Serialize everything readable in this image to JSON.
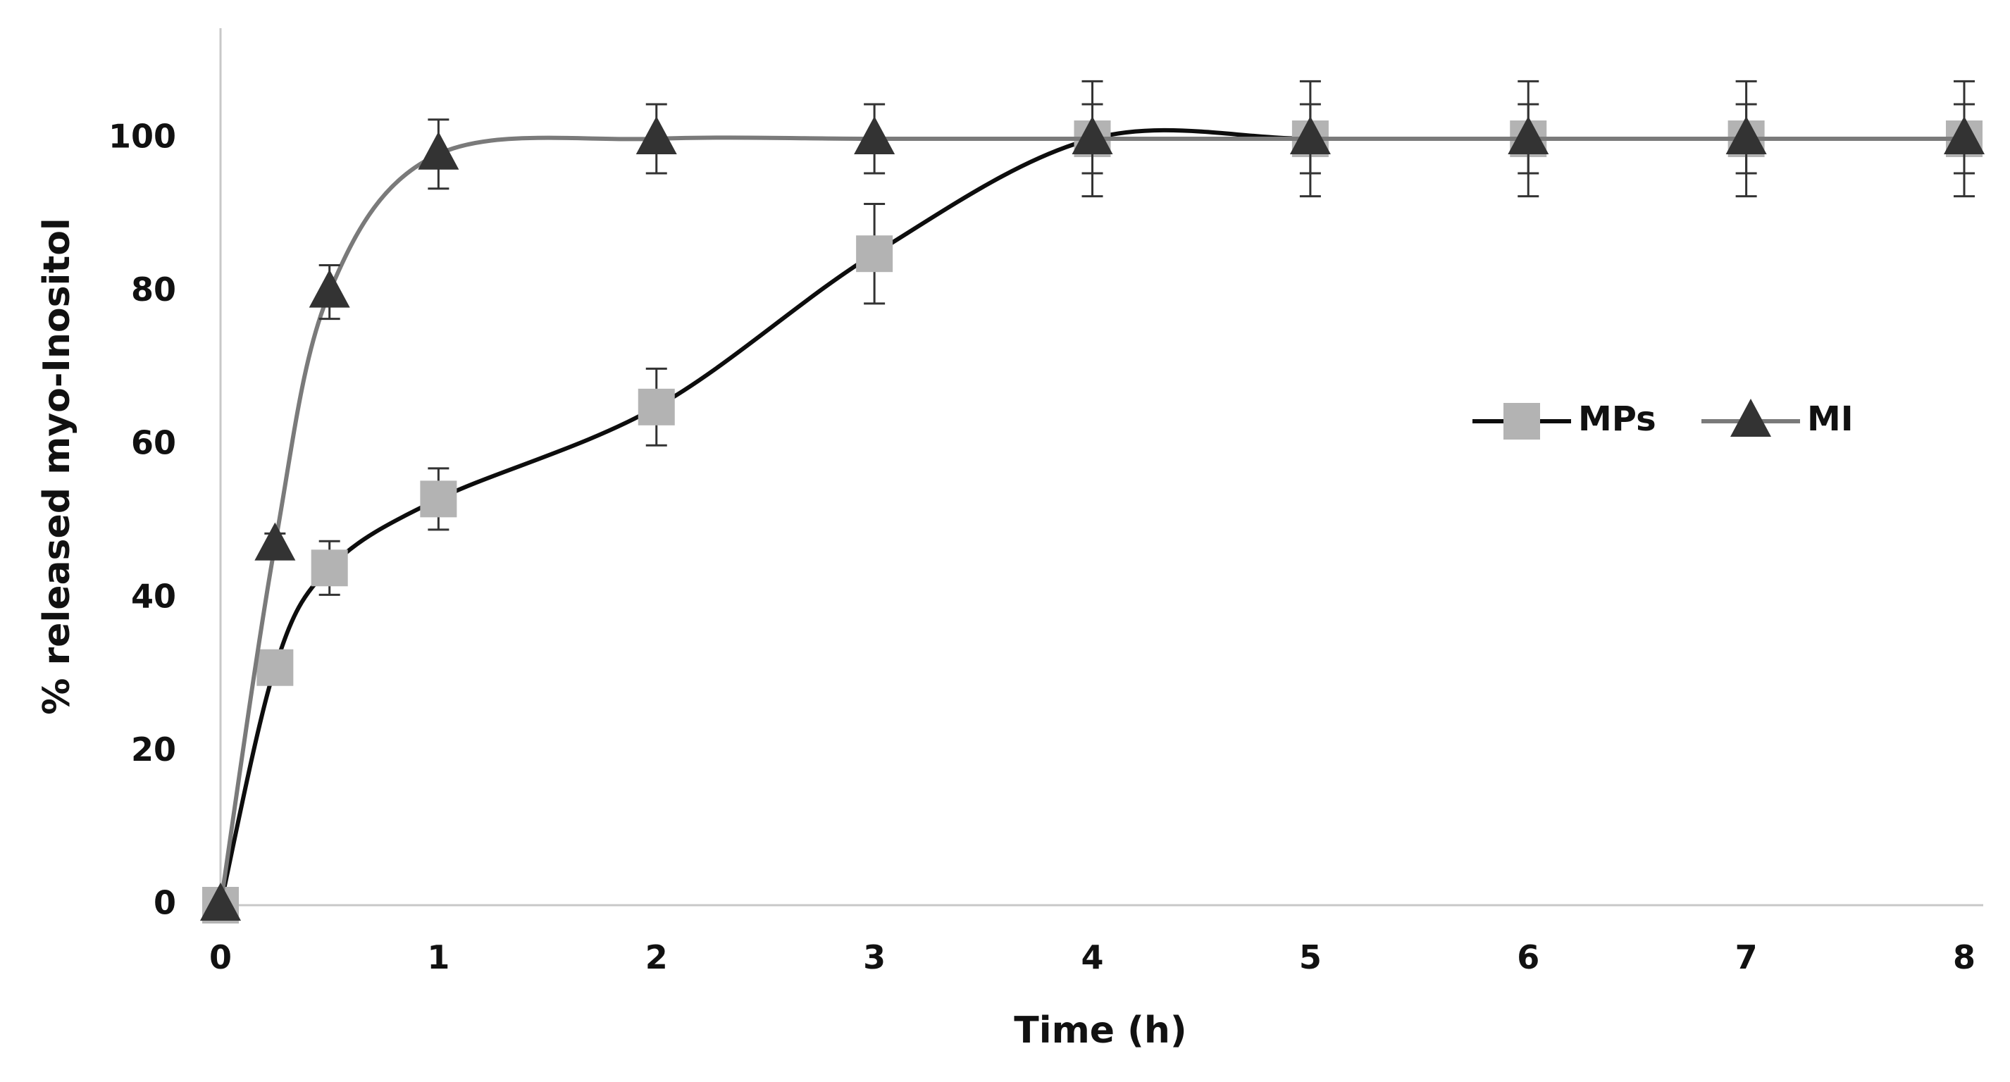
{
  "chart_data": {
    "type": "line",
    "title": "",
    "xlabel": "Time (h)",
    "ylabel": "% released myo-Inositol",
    "xlim": [
      0,
      8
    ],
    "ylim": [
      0,
      110
    ],
    "x_ticks": [
      "0",
      "1",
      "2",
      "3",
      "4",
      "5",
      "6",
      "7",
      "8"
    ],
    "y_ticks": [
      "0",
      "20",
      "40",
      "60",
      "80",
      "100"
    ],
    "grid": false,
    "legend_position": "right-middle",
    "series": [
      {
        "name": "MPs",
        "marker": "square",
        "line_color": "#0d0d0d",
        "marker_color": "#b3b3b3",
        "x": [
          0,
          0.25,
          0.5,
          1,
          2,
          3,
          4,
          5,
          6,
          7,
          8
        ],
        "values": [
          0,
          31,
          44,
          53,
          65,
          85,
          100,
          100,
          100,
          100,
          100
        ],
        "errors": [
          0,
          0,
          3.5,
          4,
          5,
          6.5,
          7.5,
          7.5,
          7.5,
          7.5,
          7.5
        ]
      },
      {
        "name": "MI",
        "marker": "triangle",
        "line_color": "#7a7a7a",
        "marker_color": "#333333",
        "x": [
          0,
          0.25,
          0.5,
          1,
          2,
          3,
          4,
          5,
          6,
          7,
          8
        ],
        "values": [
          0,
          47,
          80,
          98,
          100,
          100,
          100,
          100,
          100,
          100,
          100
        ],
        "errors": [
          0,
          1.5,
          3.5,
          4.5,
          4.5,
          4.5,
          4.5,
          4.5,
          4.5,
          4.5,
          4.5
        ]
      }
    ]
  }
}
